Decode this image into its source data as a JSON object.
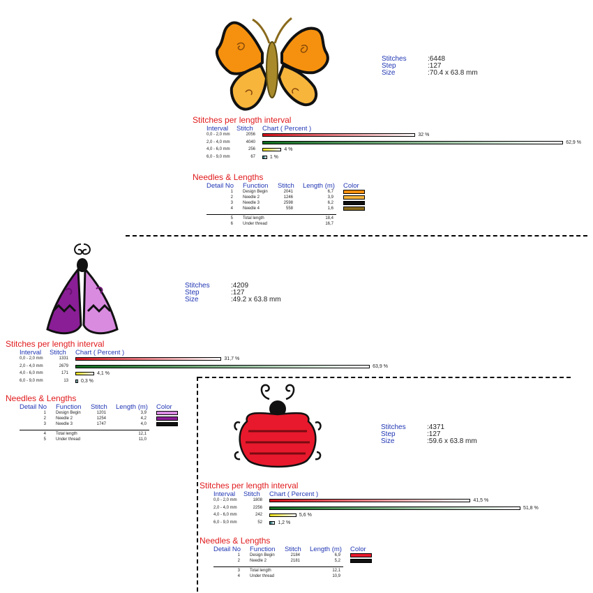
{
  "labels": {
    "stitches": "Stitches",
    "step": "Step",
    "size": "Size",
    "stitch_chart_title": "Stitches per length interval",
    "needles_title": "Needles & Lengths",
    "col_interval": "Interval",
    "col_stitch": "Stitch",
    "col_chart": "Chart ( Percent )",
    "col_detail": "Detail No",
    "col_function": "Function",
    "col_length": "Length (m)",
    "col_color": "Color"
  },
  "designs": [
    {
      "art": "orange-butterfly",
      "stitches": ":6448",
      "step": ":127",
      "size": ":70.4 x 63.8 mm",
      "intervals": [
        {
          "range": "0,0 - 2,0 mm",
          "stitch": "2056",
          "percent": 32.0,
          "label": "32 %"
        },
        {
          "range": "2,0 - 4,0 mm",
          "stitch": "4040",
          "percent": 62.9,
          "label": "62,9 %"
        },
        {
          "range": "4,0 - 6,0 mm",
          "stitch": "256",
          "percent": 4.0,
          "label": "4 %"
        },
        {
          "range": "6,0 - 9,0 mm",
          "stitch": "67",
          "percent": 1.0,
          "label": "1 %"
        }
      ],
      "needles": [
        {
          "no": "1",
          "function": "Design Begin",
          "stitch": "2041",
          "length": "6,7",
          "color": "#f5910f"
        },
        {
          "no": "2",
          "function": "Needle 2",
          "stitch": "1246",
          "length": "3,9",
          "color": "#f7b53c"
        },
        {
          "no": "3",
          "function": "Needle 3",
          "stitch": "2598",
          "length": "6,2",
          "color": "#111111"
        },
        {
          "no": "4",
          "function": "Needle 4",
          "stitch": "558",
          "length": "1,6",
          "color": "#8a6a1c"
        }
      ],
      "totals": [
        {
          "no": "5",
          "function": "Total length",
          "length": "18,4"
        },
        {
          "no": "6",
          "function": "Under thread",
          "length": "16,7"
        }
      ]
    },
    {
      "art": "purple-moth",
      "stitches": ":4209",
      "step": ":127",
      "size": ":49.2 x 63.8 mm",
      "intervals": [
        {
          "range": "0,0 - 2,0 mm",
          "stitch": "1331",
          "percent": 31.7,
          "label": "31,7 %"
        },
        {
          "range": "2,0 - 4,0 mm",
          "stitch": "2679",
          "percent": 63.9,
          "label": "63,9 %"
        },
        {
          "range": "4,0 - 6,0 mm",
          "stitch": "171",
          "percent": 4.1,
          "label": "4,1 %"
        },
        {
          "range": "6,0 - 9,0 mm",
          "stitch": "13",
          "percent": 0.3,
          "label": "0,3 %"
        }
      ],
      "needles": [
        {
          "no": "1",
          "function": "Design Begin",
          "stitch": "1201",
          "length": "3,9",
          "color": "#d98be0"
        },
        {
          "no": "2",
          "function": "Needle 2",
          "stitch": "1254",
          "length": "4,2",
          "color": "#8a1e96"
        },
        {
          "no": "3",
          "function": "Needle 3",
          "stitch": "1747",
          "length": "4,0",
          "color": "#111111"
        }
      ],
      "totals": [
        {
          "no": "4",
          "function": "Total length",
          "length": "12,1"
        },
        {
          "no": "5",
          "function": "Under thread",
          "length": "11,0"
        }
      ]
    },
    {
      "art": "red-ladybug",
      "stitches": ":4371",
      "step": ":127",
      "size": ":59.6 x 63.8 mm",
      "intervals": [
        {
          "range": "0,0 - 2,0 mm",
          "stitch": "1808",
          "percent": 41.5,
          "label": "41,5 %"
        },
        {
          "range": "2,0 - 4,0 mm",
          "stitch": "2256",
          "percent": 51.8,
          "label": "51,8 %"
        },
        {
          "range": "4,0 - 6,0 mm",
          "stitch": "242",
          "percent": 5.6,
          "label": "5,6 %"
        },
        {
          "range": "6,0 - 9,0 mm",
          "stitch": "52",
          "percent": 1.2,
          "label": "1,2 %"
        }
      ],
      "needles": [
        {
          "no": "1",
          "function": "Design Begin",
          "stitch": "2184",
          "length": "6,9",
          "color": "#e8192c"
        },
        {
          "no": "2",
          "function": "Needle 2",
          "stitch": "2181",
          "length": "5,2",
          "color": "#111111"
        }
      ],
      "totals": [
        {
          "no": "3",
          "function": "Total length",
          "length": "12,1"
        },
        {
          "no": "4",
          "function": "Under thread",
          "length": "10,9"
        }
      ]
    }
  ],
  "bar_fills": [
    "linear-gradient(to right,#d40f1a,#ffffff)",
    "linear-gradient(to right,#0e6b1e,#ffffff)",
    "linear-gradient(to right,#e9de16,#ffffff)",
    "linear-gradient(to right,#0b5f6a,#ffffff)"
  ]
}
